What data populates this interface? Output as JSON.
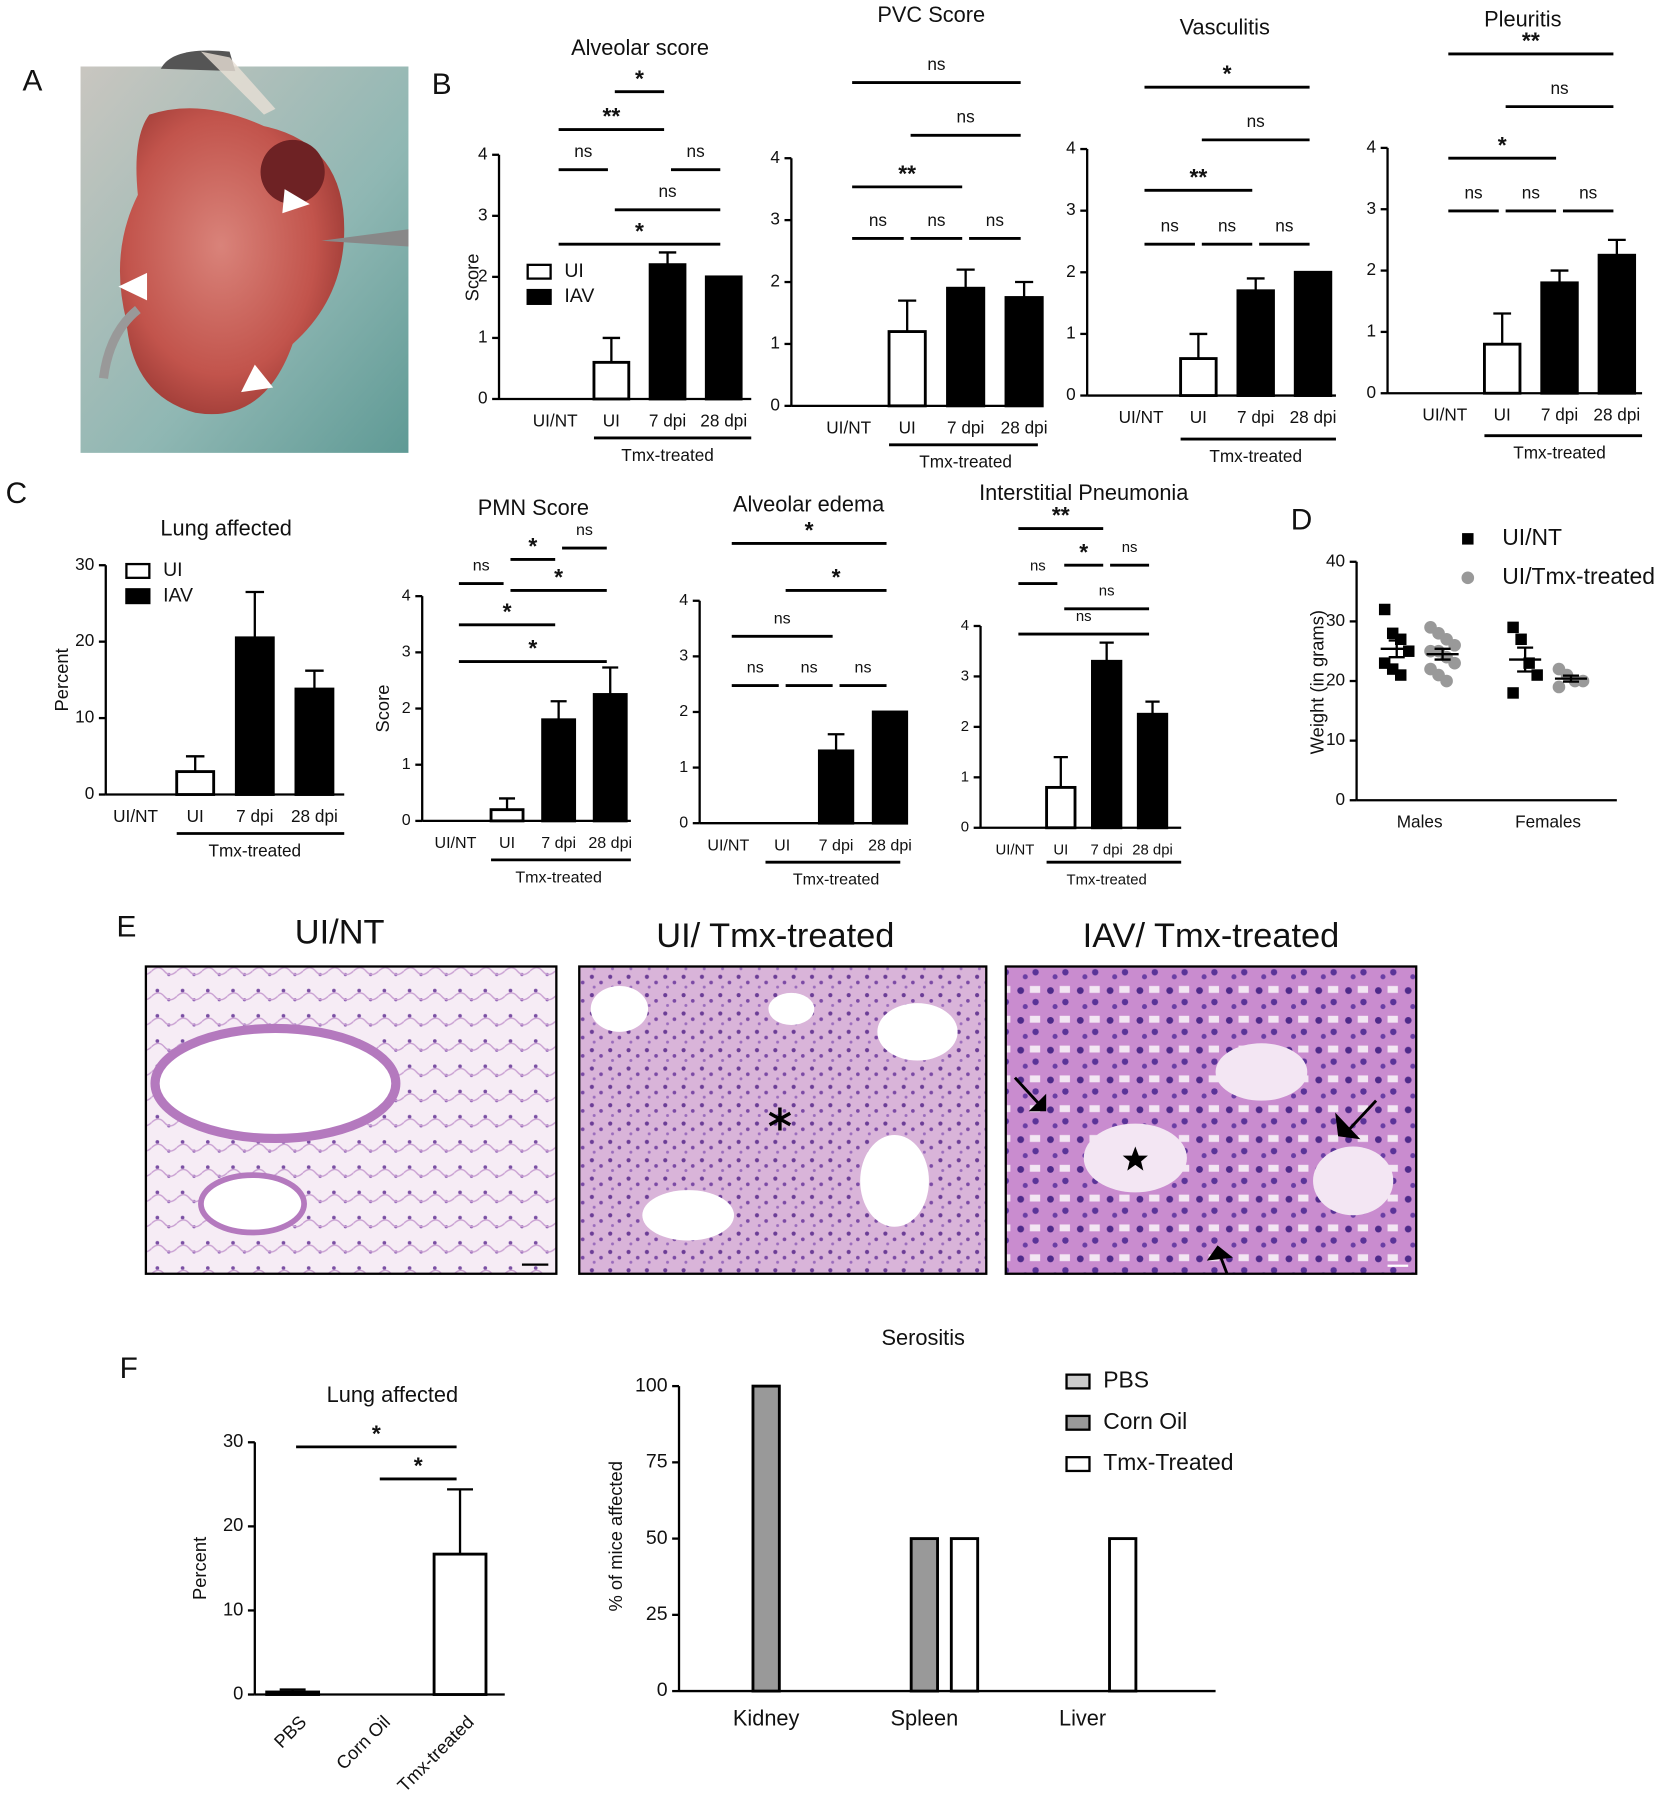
{
  "panels": [
    "A",
    "B",
    "C",
    "D",
    "E",
    "F"
  ],
  "histology_titles": [
    "UI/NT",
    "UI/ Tmx-treated",
    "IAV/ Tmx-treated"
  ],
  "chart_data": [
    {
      "type": "bar",
      "title": "Alveolar score",
      "y_label": "Score",
      "categories": [
        "UI/NT",
        "UI",
        "7 dpi",
        "28 dpi"
      ],
      "values": [
        0,
        0.6,
        2.2,
        2.0
      ],
      "errors": [
        null,
        0.4,
        0.2,
        null
      ],
      "colors": [
        "#ffffff",
        "#ffffff",
        "#000000",
        "#000000"
      ],
      "ylim": [
        0,
        4
      ],
      "yticks": [
        0,
        1,
        2,
        3,
        4
      ],
      "group": {
        "label": "Tmx-treated",
        "from": 1,
        "to": 3
      },
      "legend": [
        {
          "name": "UI",
          "color": "#ffffff"
        },
        {
          "name": "IAV",
          "color": "#000000"
        }
      ],
      "comparisons": [
        {
          "from": 0,
          "to": 3,
          "label": "*"
        },
        {
          "from": 1,
          "to": 3,
          "label": "ns"
        },
        {
          "from": 0,
          "to": 1,
          "label": "ns"
        },
        {
          "from": 2,
          "to": 3,
          "label": "ns"
        },
        {
          "from": 0,
          "to": 2,
          "label": "**"
        },
        {
          "from": 1,
          "to": 2,
          "label": "*"
        }
      ]
    },
    {
      "type": "bar",
      "title": "PVC Score",
      "categories": [
        "UI/NT",
        "UI",
        "7 dpi",
        "28 dpi"
      ],
      "values": [
        0,
        1.2,
        1.9,
        1.75
      ],
      "errors": [
        null,
        0.5,
        0.3,
        0.25
      ],
      "colors": [
        "#ffffff",
        "#ffffff",
        "#000000",
        "#000000"
      ],
      "ylim": [
        0,
        4
      ],
      "yticks": [
        0,
        1,
        2,
        3,
        4
      ],
      "group": {
        "label": "Tmx-treated",
        "from": 1,
        "to": 3
      },
      "comparisons": [
        {
          "from": 0,
          "to": 1,
          "label": "ns"
        },
        {
          "from": 1,
          "to": 2,
          "label": "ns"
        },
        {
          "from": 2,
          "to": 3,
          "label": "ns"
        },
        {
          "from": 0,
          "to": 2,
          "label": "**"
        },
        {
          "from": 1,
          "to": 3,
          "label": "ns"
        },
        {
          "from": 0,
          "to": 3,
          "label": "ns"
        }
      ]
    },
    {
      "type": "bar",
      "title": "Vasculitis",
      "categories": [
        "UI/NT",
        "UI",
        "7 dpi",
        "28 dpi"
      ],
      "values": [
        0,
        0.6,
        1.7,
        2.0
      ],
      "errors": [
        null,
        0.4,
        0.2,
        null
      ],
      "colors": [
        "#ffffff",
        "#ffffff",
        "#000000",
        "#000000"
      ],
      "ylim": [
        0,
        4
      ],
      "yticks": [
        0,
        1,
        2,
        3,
        4
      ],
      "group": {
        "label": "Tmx-treated",
        "from": 1,
        "to": 3
      },
      "comparisons": [
        {
          "from": 0,
          "to": 1,
          "label": "ns"
        },
        {
          "from": 1,
          "to": 2,
          "label": "ns"
        },
        {
          "from": 2,
          "to": 3,
          "label": "ns"
        },
        {
          "from": 0,
          "to": 2,
          "label": "**"
        },
        {
          "from": 1,
          "to": 3,
          "label": "ns"
        },
        {
          "from": 0,
          "to": 3,
          "label": "*"
        }
      ]
    },
    {
      "type": "bar",
      "title": "Pleuritis",
      "categories": [
        "UI/NT",
        "UI",
        "7 dpi",
        "28 dpi"
      ],
      "values": [
        0,
        0.8,
        1.8,
        2.25
      ],
      "errors": [
        null,
        0.5,
        0.2,
        0.25
      ],
      "colors": [
        "#ffffff",
        "#ffffff",
        "#000000",
        "#000000"
      ],
      "ylim": [
        0,
        4
      ],
      "yticks": [
        0,
        1,
        2,
        3,
        4
      ],
      "group": {
        "label": "Tmx-treated",
        "from": 1,
        "to": 3
      },
      "comparisons": [
        {
          "from": 0,
          "to": 1,
          "label": "ns"
        },
        {
          "from": 1,
          "to": 2,
          "label": "ns"
        },
        {
          "from": 2,
          "to": 3,
          "label": "ns"
        },
        {
          "from": 0,
          "to": 2,
          "label": "*"
        },
        {
          "from": 1,
          "to": 3,
          "label": "ns"
        },
        {
          "from": 0,
          "to": 3,
          "label": "**"
        }
      ]
    },
    {
      "type": "bar",
      "title": "Lung affected",
      "y_label": "Percent",
      "categories": [
        "UI/NT",
        "UI",
        "7 dpi",
        "28 dpi"
      ],
      "values": [
        0,
        3,
        20.5,
        13.8
      ],
      "errors": [
        null,
        2,
        6,
        2.4
      ],
      "colors": [
        "#ffffff",
        "#ffffff",
        "#000000",
        "#000000"
      ],
      "ylim": [
        0,
        30
      ],
      "yticks": [
        0,
        10,
        20,
        30
      ],
      "group": {
        "label": "Tmx-treated",
        "from": 1,
        "to": 3
      },
      "legend": [
        {
          "name": "UI",
          "color": "#ffffff"
        },
        {
          "name": "IAV",
          "color": "#000000"
        }
      ],
      "comparisons": []
    },
    {
      "type": "bar",
      "title": "PMN  Score",
      "y_label": "Score",
      "categories": [
        "UI/NT",
        "UI",
        "7 dpi",
        "28 dpi"
      ],
      "values": [
        0,
        0.2,
        1.8,
        2.25
      ],
      "errors": [
        null,
        0.2,
        0.33,
        0.48
      ],
      "colors": [
        "#ffffff",
        "#ffffff",
        "#000000",
        "#000000"
      ],
      "ylim": [
        0,
        4
      ],
      "yticks": [
        0,
        1,
        2,
        3,
        4
      ],
      "group": {
        "label": "Tmx-treated",
        "from": 1,
        "to": 3
      },
      "comparisons": [
        {
          "from": 0,
          "to": 3,
          "label": "*"
        },
        {
          "from": 0,
          "to": 2,
          "label": "*"
        },
        {
          "from": 1,
          "to": 3,
          "label": "*"
        },
        {
          "from": 0,
          "to": 1,
          "label": "ns"
        },
        {
          "from": 1,
          "to": 2,
          "label": "*"
        },
        {
          "from": 2,
          "to": 3,
          "label": "ns"
        }
      ]
    },
    {
      "type": "bar",
      "title": "Alveolar edema",
      "categories": [
        "UI/NT",
        "UI",
        "7 dpi",
        "28 dpi"
      ],
      "values": [
        0,
        0,
        1.3,
        2.0
      ],
      "errors": [
        null,
        null,
        0.3,
        null
      ],
      "colors": [
        "#ffffff",
        "#ffffff",
        "#000000",
        "#000000"
      ],
      "ylim": [
        0,
        4
      ],
      "yticks": [
        0,
        1,
        2,
        3,
        4
      ],
      "group": {
        "label": "Tmx-treated",
        "from": 1,
        "to": 3
      },
      "comparisons": [
        {
          "from": 0,
          "to": 1,
          "label": "ns"
        },
        {
          "from": 1,
          "to": 2,
          "label": "ns"
        },
        {
          "from": 2,
          "to": 3,
          "label": "ns"
        },
        {
          "from": 0,
          "to": 2,
          "label": "ns"
        },
        {
          "from": 1,
          "to": 3,
          "label": "*"
        },
        {
          "from": 0,
          "to": 3,
          "label": "*"
        }
      ]
    },
    {
      "type": "bar",
      "title": "Interstitial Pneumonia",
      "categories": [
        "UI/NT",
        "UI",
        "7 dpi",
        "28 dpi"
      ],
      "values": [
        0,
        0.8,
        3.3,
        2.25
      ],
      "errors": [
        null,
        0.6,
        0.37,
        0.25
      ],
      "colors": [
        "#ffffff",
        "#ffffff",
        "#000000",
        "#000000"
      ],
      "ylim": [
        0,
        4
      ],
      "yticks": [
        0,
        1,
        2,
        3,
        4
      ],
      "group": {
        "label": "Tmx-treated",
        "from": 1,
        "to": 3
      },
      "comparisons": [
        {
          "from": 0,
          "to": 3,
          "label": "ns"
        },
        {
          "from": 1,
          "to": 3,
          "label": "ns"
        },
        {
          "from": 0,
          "to": 1,
          "label": "ns"
        },
        {
          "from": 1,
          "to": 2,
          "label": "*"
        },
        {
          "from": 2,
          "to": 3,
          "label": "ns"
        },
        {
          "from": 0,
          "to": 2,
          "label": "**"
        }
      ]
    },
    {
      "type": "dot_plot",
      "y_label": "Weight (in grams)",
      "categories": [
        "Males",
        "Females"
      ],
      "ylim": [
        0,
        40
      ],
      "yticks": [
        0,
        10,
        20,
        30,
        40
      ],
      "legend_position": "upper right",
      "series": [
        {
          "name": "UI/NT",
          "color": "#000000",
          "marker": "square",
          "values": [
            [
              32,
              28,
              27,
              25,
              23,
              22,
              21
            ],
            [
              29,
              27,
              23,
              21,
              18
            ]
          ],
          "means": [
            25.4,
            23.6
          ],
          "sems": [
            1.4,
            2.0
          ]
        },
        {
          "name": "UI/Tmx-treated",
          "color": "#999999",
          "marker": "circle",
          "values": [
            [
              29,
              28,
              27,
              26,
              25,
              25,
              24,
              23,
              22,
              21,
              20
            ],
            [
              22,
              21,
              20,
              20,
              19
            ]
          ],
          "means": [
            24.5,
            20.4
          ],
          "sems": [
            0.9,
            0.5
          ]
        }
      ]
    },
    {
      "type": "bar",
      "title": "Lung affected",
      "y_label": "Percent",
      "categories": [
        "PBS",
        "Corn Oil",
        "Tmx-treated"
      ],
      "values": [
        0.3,
        0,
        16.7
      ],
      "errors": [
        0.3,
        null,
        7.7
      ],
      "colors": [
        "#ffffff",
        "#ffffff",
        "#ffffff"
      ],
      "ylim": [
        0,
        30
      ],
      "yticks": [
        0,
        10,
        20,
        30
      ],
      "comparisons": [
        {
          "from": 1,
          "to": 2,
          "label": "*"
        },
        {
          "from": 0,
          "to": 2,
          "label": "*"
        }
      ]
    },
    {
      "type": "grouped_bar",
      "title": "Serositis",
      "y_label": "% of mice affected",
      "categories": [
        "Kidney",
        "Spleen",
        "Liver"
      ],
      "ylim": [
        0,
        100
      ],
      "yticks": [
        0,
        25,
        50,
        75,
        100
      ],
      "legend_position": "upper right",
      "series": [
        {
          "name": "PBS",
          "color": "#cccccc",
          "values": [
            0,
            0,
            0
          ]
        },
        {
          "name": "Corn Oil",
          "color": "#999999",
          "values": [
            100,
            50,
            0
          ]
        },
        {
          "name": "Tmx-Treated",
          "color": "#ffffff",
          "values": [
            0,
            50,
            50
          ]
        }
      ]
    }
  ]
}
